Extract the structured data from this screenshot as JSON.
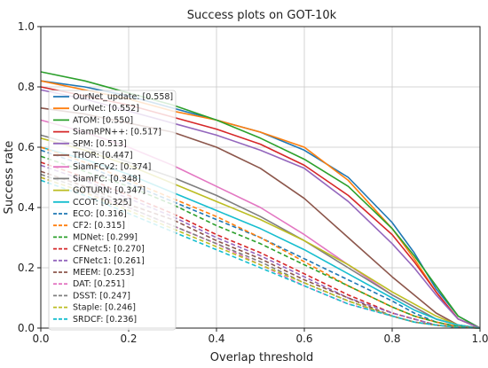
{
  "chart_data": {
    "type": "line",
    "title": "Success plots on GOT-10k",
    "xlabel": "Overlap threshold",
    "ylabel": "Success rate",
    "xlim": [
      0,
      1
    ],
    "ylim": [
      0,
      1
    ],
    "xticks": [
      "0.0",
      "0.2",
      "0.4",
      "0.6",
      "0.8",
      "1.0"
    ],
    "yticks": [
      "0.0",
      "0.2",
      "0.4",
      "0.6",
      "0.8",
      "1.0"
    ],
    "grid": true,
    "legend_position": "left",
    "x": [
      0.0,
      0.1,
      0.2,
      0.3,
      0.4,
      0.5,
      0.6,
      0.7,
      0.8,
      0.85,
      0.9,
      0.95,
      1.0
    ],
    "series": [
      {
        "name": "OurNet_update: [0.558]",
        "color": "#1f77b4",
        "dash": "solid",
        "values": [
          0.82,
          0.8,
          0.77,
          0.73,
          0.69,
          0.65,
          0.59,
          0.5,
          0.35,
          0.25,
          0.13,
          0.04,
          0.0
        ]
      },
      {
        "name": "OurNet: [0.552]",
        "color": "#ff7f0e",
        "dash": "solid",
        "values": [
          0.82,
          0.79,
          0.76,
          0.72,
          0.69,
          0.65,
          0.6,
          0.49,
          0.33,
          0.23,
          0.12,
          0.03,
          0.0
        ]
      },
      {
        "name": "ATOM: [0.550]",
        "color": "#2ca02c",
        "dash": "solid",
        "values": [
          0.85,
          0.82,
          0.78,
          0.74,
          0.69,
          0.63,
          0.56,
          0.47,
          0.33,
          0.24,
          0.14,
          0.04,
          0.0
        ]
      },
      {
        "name": "SiamRPN++: [0.517]",
        "color": "#d62728",
        "dash": "solid",
        "values": [
          0.8,
          0.77,
          0.74,
          0.7,
          0.66,
          0.61,
          0.54,
          0.44,
          0.31,
          0.22,
          0.12,
          0.03,
          0.0
        ]
      },
      {
        "name": "SPM: [0.513]",
        "color": "#9467bd",
        "dash": "solid",
        "values": [
          0.79,
          0.76,
          0.72,
          0.68,
          0.64,
          0.59,
          0.53,
          0.42,
          0.28,
          0.2,
          0.11,
          0.03,
          0.0
        ]
      },
      {
        "name": "THOR: [0.447]",
        "color": "#8c564b",
        "dash": "solid",
        "values": [
          0.73,
          0.71,
          0.68,
          0.65,
          0.6,
          0.53,
          0.43,
          0.3,
          0.17,
          0.11,
          0.05,
          0.01,
          0.0
        ]
      },
      {
        "name": "SiamFCv2: [0.374]",
        "color": "#e377c2",
        "dash": "solid",
        "values": [
          0.69,
          0.65,
          0.6,
          0.54,
          0.47,
          0.4,
          0.31,
          0.21,
          0.11,
          0.07,
          0.03,
          0.01,
          0.0
        ]
      },
      {
        "name": "SiamFC: [0.348]",
        "color": "#7f7f7f",
        "dash": "solid",
        "values": [
          0.64,
          0.6,
          0.55,
          0.5,
          0.44,
          0.37,
          0.29,
          0.2,
          0.11,
          0.07,
          0.03,
          0.01,
          0.0
        ]
      },
      {
        "name": "GOTURN: [0.347]",
        "color": "#bcbd22",
        "dash": "solid",
        "values": [
          0.63,
          0.59,
          0.54,
          0.48,
          0.42,
          0.36,
          0.29,
          0.21,
          0.12,
          0.08,
          0.04,
          0.01,
          0.0
        ]
      },
      {
        "name": "CCOT: [0.325]",
        "color": "#17becf",
        "dash": "solid",
        "values": [
          0.6,
          0.56,
          0.51,
          0.45,
          0.39,
          0.33,
          0.26,
          0.18,
          0.1,
          0.06,
          0.03,
          0.01,
          0.0
        ]
      },
      {
        "name": "ECO: [0.316]",
        "color": "#1f77b4",
        "dash": "dashed",
        "values": [
          0.59,
          0.54,
          0.48,
          0.42,
          0.36,
          0.3,
          0.23,
          0.16,
          0.09,
          0.05,
          0.02,
          0.005,
          0.0
        ]
      },
      {
        "name": "CF2: [0.315]",
        "color": "#ff7f0e",
        "dash": "dashed",
        "values": [
          0.6,
          0.55,
          0.49,
          0.43,
          0.37,
          0.3,
          0.22,
          0.14,
          0.07,
          0.04,
          0.02,
          0.005,
          0.0
        ]
      },
      {
        "name": "MDNet: [0.299]",
        "color": "#2ca02c",
        "dash": "dashed",
        "values": [
          0.57,
          0.52,
          0.47,
          0.41,
          0.34,
          0.28,
          0.21,
          0.14,
          0.07,
          0.04,
          0.02,
          0.005,
          0.0
        ]
      },
      {
        "name": "CFNetc5: [0.270]",
        "color": "#d62728",
        "dash": "dashed",
        "values": [
          0.55,
          0.5,
          0.44,
          0.38,
          0.31,
          0.25,
          0.18,
          0.11,
          0.05,
          0.03,
          0.01,
          0.003,
          0.0
        ]
      },
      {
        "name": "CFNetc1: [0.261]",
        "color": "#9467bd",
        "dash": "dashed",
        "values": [
          0.54,
          0.49,
          0.43,
          0.37,
          0.3,
          0.24,
          0.17,
          0.1,
          0.05,
          0.03,
          0.01,
          0.003,
          0.0
        ]
      },
      {
        "name": "MEEM: [0.253]",
        "color": "#8c564b",
        "dash": "dashed",
        "values": [
          0.52,
          0.47,
          0.41,
          0.36,
          0.29,
          0.23,
          0.16,
          0.1,
          0.04,
          0.02,
          0.01,
          0.002,
          0.0
        ]
      },
      {
        "name": "DAT: [0.251]",
        "color": "#e377c2",
        "dash": "dashed",
        "values": [
          0.5,
          0.45,
          0.4,
          0.34,
          0.28,
          0.21,
          0.14,
          0.08,
          0.04,
          0.02,
          0.01,
          0.002,
          0.0
        ]
      },
      {
        "name": "DSST: [0.247]",
        "color": "#7f7f7f",
        "dash": "dashed",
        "values": [
          0.51,
          0.46,
          0.4,
          0.34,
          0.28,
          0.22,
          0.15,
          0.09,
          0.04,
          0.02,
          0.01,
          0.002,
          0.0
        ]
      },
      {
        "name": "Staple: [0.246]",
        "color": "#bcbd22",
        "dash": "dashed",
        "values": [
          0.5,
          0.45,
          0.39,
          0.33,
          0.27,
          0.21,
          0.15,
          0.09,
          0.04,
          0.02,
          0.01,
          0.002,
          0.0
        ]
      },
      {
        "name": "SRDCF: [0.236]",
        "color": "#17becf",
        "dash": "dashed",
        "values": [
          0.49,
          0.44,
          0.38,
          0.32,
          0.26,
          0.2,
          0.14,
          0.08,
          0.04,
          0.02,
          0.01,
          0.002,
          0.0
        ]
      }
    ]
  }
}
